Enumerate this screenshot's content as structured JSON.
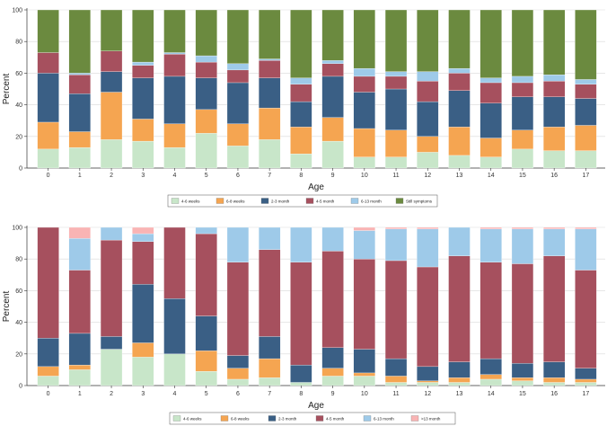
{
  "chart_data": [
    {
      "type": "bar",
      "stacked": true,
      "percent": true,
      "xlabel": "Age",
      "ylabel": "Percent",
      "ylim": [
        0,
        100
      ],
      "yticks": [
        0,
        20,
        40,
        60,
        80,
        100
      ],
      "categories": [
        "0",
        "1",
        "2",
        "3",
        "4",
        "5",
        "6",
        "7",
        "8",
        "9",
        "10",
        "11",
        "12",
        "13",
        "14",
        "15",
        "16",
        "17"
      ],
      "legend": [
        "4-6 weeks",
        "6-8 weeks",
        "2-3 month",
        "4-5 month",
        "6-13 month",
        "Still symptoms"
      ],
      "series": [
        {
          "name": "4-6 weeks",
          "color": "#c8e6c9",
          "values": [
            12,
            13,
            18,
            17,
            13,
            22,
            14,
            18,
            9,
            17,
            7,
            7,
            10,
            8,
            7,
            12,
            11,
            11
          ]
        },
        {
          "name": "6-8 weeks",
          "color": "#f5a551",
          "values": [
            17,
            10,
            30,
            14,
            15,
            15,
            14,
            20,
            17,
            15,
            18,
            17,
            10,
            18,
            12,
            12,
            15,
            16
          ]
        },
        {
          "name": "2-3 month",
          "color": "#3a5f85",
          "values": [
            31,
            24,
            13,
            26,
            30,
            20,
            26,
            19,
            16,
            26,
            23,
            26,
            22,
            23,
            22,
            21,
            19,
            17
          ]
        },
        {
          "name": "4-5 month",
          "color": "#a6505e",
          "values": [
            13,
            12,
            13,
            8,
            14,
            10,
            8,
            11,
            11,
            8,
            10,
            8,
            13,
            11,
            13,
            9,
            10,
            9
          ]
        },
        {
          "name": "6-13 month",
          "color": "#9ecae9",
          "values": [
            0,
            1,
            0,
            2,
            1,
            4,
            4,
            1,
            4,
            2,
            5,
            3,
            6,
            3,
            3,
            4,
            4,
            3
          ]
        },
        {
          "name": "Still symptoms",
          "color": "#6b8a3f",
          "values": [
            27,
            40,
            26,
            33,
            27,
            29,
            34,
            31,
            43,
            32,
            37,
            39,
            39,
            37,
            43,
            42,
            41,
            44
          ]
        }
      ]
    },
    {
      "type": "bar",
      "stacked": true,
      "percent": true,
      "xlabel": "Age",
      "ylabel": "Percent",
      "ylim": [
        0,
        100
      ],
      "yticks": [
        0,
        20,
        40,
        60,
        80,
        100
      ],
      "categories": [
        "0",
        "1",
        "2",
        "3",
        "4",
        "5",
        "6",
        "7",
        "8",
        "9",
        "10",
        "11",
        "12",
        "13",
        "14",
        "15",
        "16",
        "17"
      ],
      "legend": [
        "4-6 weeks",
        "6-8 weeks",
        "2-3 month",
        "4-5 month",
        "6-13 month",
        ">13 month"
      ],
      "series": [
        {
          "name": "4-6 weeks",
          "color": "#c8e6c9",
          "values": [
            6,
            10,
            23,
            18,
            20,
            9,
            4,
            5,
            2,
            6,
            6,
            2,
            2,
            2,
            4,
            3,
            2,
            2
          ]
        },
        {
          "name": "6-8 weeks",
          "color": "#f5a551",
          "values": [
            6,
            3,
            0,
            9,
            0,
            13,
            7,
            12,
            0,
            5,
            2,
            4,
            1,
            3,
            3,
            2,
            3,
            2
          ]
        },
        {
          "name": "2-3 month",
          "color": "#3a5f85",
          "values": [
            18,
            20,
            8,
            37,
            35,
            22,
            8,
            14,
            11,
            13,
            15,
            11,
            9,
            10,
            10,
            9,
            10,
            7
          ]
        },
        {
          "name": "4-5 month",
          "color": "#a6505e",
          "values": [
            70,
            40,
            61,
            27,
            45,
            52,
            59,
            55,
            65,
            61,
            57,
            62,
            63,
            67,
            61,
            63,
            67,
            62
          ]
        },
        {
          "name": "6-13 month",
          "color": "#9ecae9",
          "values": [
            0,
            20,
            8,
            5,
            0,
            4,
            22,
            14,
            22,
            15,
            18,
            20,
            24,
            18,
            21,
            22,
            17,
            26
          ]
        },
        {
          "name": ">13 month",
          "color": "#f9b4b4",
          "values": [
            0,
            7,
            0,
            4,
            0,
            0,
            0,
            0,
            0,
            0,
            2,
            1,
            1,
            0,
            1,
            1,
            1,
            1
          ]
        }
      ]
    }
  ]
}
